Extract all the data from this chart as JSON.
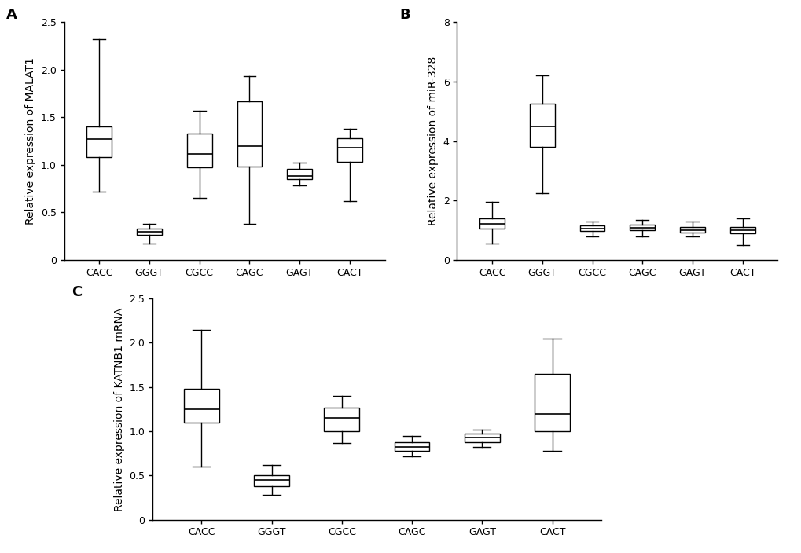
{
  "categories": [
    "CACC",
    "GGGT",
    "CGCC",
    "CAGC",
    "GAGT",
    "CACT"
  ],
  "panel_A": {
    "title": "A",
    "ylabel": "Relative expression of MALAT1",
    "ylim": [
      0,
      2.5
    ],
    "yticks": [
      0.0,
      0.5,
      1.0,
      1.5,
      2.0,
      2.5
    ],
    "ytick_labels": [
      "0",
      "0.5",
      "1.0",
      "1.5",
      "2.0",
      "2.5"
    ],
    "boxes": [
      {
        "whislo": 0.72,
        "q1": 1.08,
        "med": 1.27,
        "q3": 1.4,
        "whishi": 2.32
      },
      {
        "whislo": 0.17,
        "q1": 0.26,
        "med": 0.3,
        "q3": 0.33,
        "whishi": 0.38
      },
      {
        "whislo": 0.65,
        "q1": 0.97,
        "med": 1.11,
        "q3": 1.33,
        "whishi": 1.57
      },
      {
        "whislo": 0.38,
        "q1": 0.98,
        "med": 1.2,
        "q3": 1.67,
        "whishi": 1.93
      },
      {
        "whislo": 0.78,
        "q1": 0.85,
        "med": 0.88,
        "q3": 0.96,
        "whishi": 1.02
      },
      {
        "whislo": 0.62,
        "q1": 1.03,
        "med": 1.18,
        "q3": 1.28,
        "whishi": 1.38
      }
    ]
  },
  "panel_B": {
    "title": "B",
    "ylabel": "Relative expression of miR-328",
    "ylim": [
      0,
      8
    ],
    "yticks": [
      0,
      2,
      4,
      6,
      8
    ],
    "ytick_labels": [
      "0",
      "2",
      "4",
      "6",
      "8"
    ],
    "boxes": [
      {
        "whislo": 0.55,
        "q1": 1.05,
        "med": 1.2,
        "q3": 1.4,
        "whishi": 1.95
      },
      {
        "whislo": 2.25,
        "q1": 3.8,
        "med": 4.5,
        "q3": 5.25,
        "whishi": 6.2
      },
      {
        "whislo": 0.78,
        "q1": 0.98,
        "med": 1.05,
        "q3": 1.15,
        "whishi": 1.3
      },
      {
        "whislo": 0.8,
        "q1": 1.0,
        "med": 1.08,
        "q3": 1.18,
        "whishi": 1.35
      },
      {
        "whislo": 0.78,
        "q1": 0.92,
        "med": 1.0,
        "q3": 1.1,
        "whishi": 1.3
      },
      {
        "whislo": 0.5,
        "q1": 0.9,
        "med": 1.0,
        "q3": 1.1,
        "whishi": 1.4
      }
    ]
  },
  "panel_C": {
    "title": "C",
    "ylabel": "Relative expression of KATNB1 mRNA",
    "ylim": [
      0,
      2.5
    ],
    "yticks": [
      0.0,
      0.5,
      1.0,
      1.5,
      2.0,
      2.5
    ],
    "ytick_labels": [
      "0",
      "0.5",
      "1.0",
      "1.5",
      "2.0",
      "2.5"
    ],
    "boxes": [
      {
        "whislo": 0.6,
        "q1": 1.1,
        "med": 1.25,
        "q3": 1.48,
        "whishi": 2.15
      },
      {
        "whislo": 0.28,
        "q1": 0.38,
        "med": 0.45,
        "q3": 0.5,
        "whishi": 0.62
      },
      {
        "whislo": 0.87,
        "q1": 1.0,
        "med": 1.15,
        "q3": 1.27,
        "whishi": 1.4
      },
      {
        "whislo": 0.72,
        "q1": 0.78,
        "med": 0.82,
        "q3": 0.88,
        "whishi": 0.95
      },
      {
        "whislo": 0.82,
        "q1": 0.88,
        "med": 0.93,
        "q3": 0.97,
        "whishi": 1.02
      },
      {
        "whislo": 0.78,
        "q1": 1.0,
        "med": 1.2,
        "q3": 1.65,
        "whishi": 2.05
      }
    ]
  },
  "box_facecolor": "#ffffff",
  "line_color": "#000000",
  "background_color": "#ffffff",
  "label_fontsize": 10,
  "tick_fontsize": 9,
  "panel_label_fontsize": 13
}
